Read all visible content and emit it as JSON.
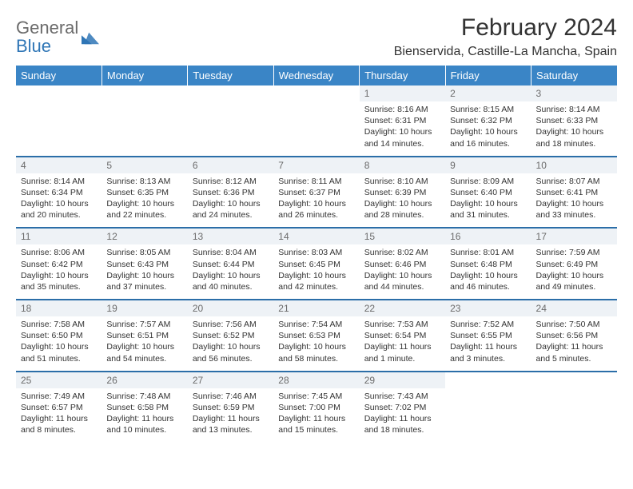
{
  "logo": {
    "text1": "General",
    "text2": "Blue"
  },
  "title": "February 2024",
  "location": "Bienservida, Castille-La Mancha, Spain",
  "colors": {
    "header_bg": "#3a85c6",
    "row_divider": "#2b6ea8",
    "daynum_bg": "#eef2f6",
    "text": "#333333",
    "logo_gray": "#6b6b6b",
    "logo_blue": "#2f76b6"
  },
  "day_labels": [
    "Sunday",
    "Monday",
    "Tuesday",
    "Wednesday",
    "Thursday",
    "Friday",
    "Saturday"
  ],
  "weeks": [
    [
      null,
      null,
      null,
      null,
      {
        "n": "1",
        "sr": "8:16 AM",
        "ss": "6:31 PM",
        "dl": "10 hours and 14 minutes."
      },
      {
        "n": "2",
        "sr": "8:15 AM",
        "ss": "6:32 PM",
        "dl": "10 hours and 16 minutes."
      },
      {
        "n": "3",
        "sr": "8:14 AM",
        "ss": "6:33 PM",
        "dl": "10 hours and 18 minutes."
      }
    ],
    [
      {
        "n": "4",
        "sr": "8:14 AM",
        "ss": "6:34 PM",
        "dl": "10 hours and 20 minutes."
      },
      {
        "n": "5",
        "sr": "8:13 AM",
        "ss": "6:35 PM",
        "dl": "10 hours and 22 minutes."
      },
      {
        "n": "6",
        "sr": "8:12 AM",
        "ss": "6:36 PM",
        "dl": "10 hours and 24 minutes."
      },
      {
        "n": "7",
        "sr": "8:11 AM",
        "ss": "6:37 PM",
        "dl": "10 hours and 26 minutes."
      },
      {
        "n": "8",
        "sr": "8:10 AM",
        "ss": "6:39 PM",
        "dl": "10 hours and 28 minutes."
      },
      {
        "n": "9",
        "sr": "8:09 AM",
        "ss": "6:40 PM",
        "dl": "10 hours and 31 minutes."
      },
      {
        "n": "10",
        "sr": "8:07 AM",
        "ss": "6:41 PM",
        "dl": "10 hours and 33 minutes."
      }
    ],
    [
      {
        "n": "11",
        "sr": "8:06 AM",
        "ss": "6:42 PM",
        "dl": "10 hours and 35 minutes."
      },
      {
        "n": "12",
        "sr": "8:05 AM",
        "ss": "6:43 PM",
        "dl": "10 hours and 37 minutes."
      },
      {
        "n": "13",
        "sr": "8:04 AM",
        "ss": "6:44 PM",
        "dl": "10 hours and 40 minutes."
      },
      {
        "n": "14",
        "sr": "8:03 AM",
        "ss": "6:45 PM",
        "dl": "10 hours and 42 minutes."
      },
      {
        "n": "15",
        "sr": "8:02 AM",
        "ss": "6:46 PM",
        "dl": "10 hours and 44 minutes."
      },
      {
        "n": "16",
        "sr": "8:01 AM",
        "ss": "6:48 PM",
        "dl": "10 hours and 46 minutes."
      },
      {
        "n": "17",
        "sr": "7:59 AM",
        "ss": "6:49 PM",
        "dl": "10 hours and 49 minutes."
      }
    ],
    [
      {
        "n": "18",
        "sr": "7:58 AM",
        "ss": "6:50 PM",
        "dl": "10 hours and 51 minutes."
      },
      {
        "n": "19",
        "sr": "7:57 AM",
        "ss": "6:51 PM",
        "dl": "10 hours and 54 minutes."
      },
      {
        "n": "20",
        "sr": "7:56 AM",
        "ss": "6:52 PM",
        "dl": "10 hours and 56 minutes."
      },
      {
        "n": "21",
        "sr": "7:54 AM",
        "ss": "6:53 PM",
        "dl": "10 hours and 58 minutes."
      },
      {
        "n": "22",
        "sr": "7:53 AM",
        "ss": "6:54 PM",
        "dl": "11 hours and 1 minute."
      },
      {
        "n": "23",
        "sr": "7:52 AM",
        "ss": "6:55 PM",
        "dl": "11 hours and 3 minutes."
      },
      {
        "n": "24",
        "sr": "7:50 AM",
        "ss": "6:56 PM",
        "dl": "11 hours and 5 minutes."
      }
    ],
    [
      {
        "n": "25",
        "sr": "7:49 AM",
        "ss": "6:57 PM",
        "dl": "11 hours and 8 minutes."
      },
      {
        "n": "26",
        "sr": "7:48 AM",
        "ss": "6:58 PM",
        "dl": "11 hours and 10 minutes."
      },
      {
        "n": "27",
        "sr": "7:46 AM",
        "ss": "6:59 PM",
        "dl": "11 hours and 13 minutes."
      },
      {
        "n": "28",
        "sr": "7:45 AM",
        "ss": "7:00 PM",
        "dl": "11 hours and 15 minutes."
      },
      {
        "n": "29",
        "sr": "7:43 AM",
        "ss": "7:02 PM",
        "dl": "11 hours and 18 minutes."
      },
      null,
      null
    ]
  ],
  "labels": {
    "sunrise": "Sunrise:",
    "sunset": "Sunset:",
    "daylight": "Daylight:"
  }
}
